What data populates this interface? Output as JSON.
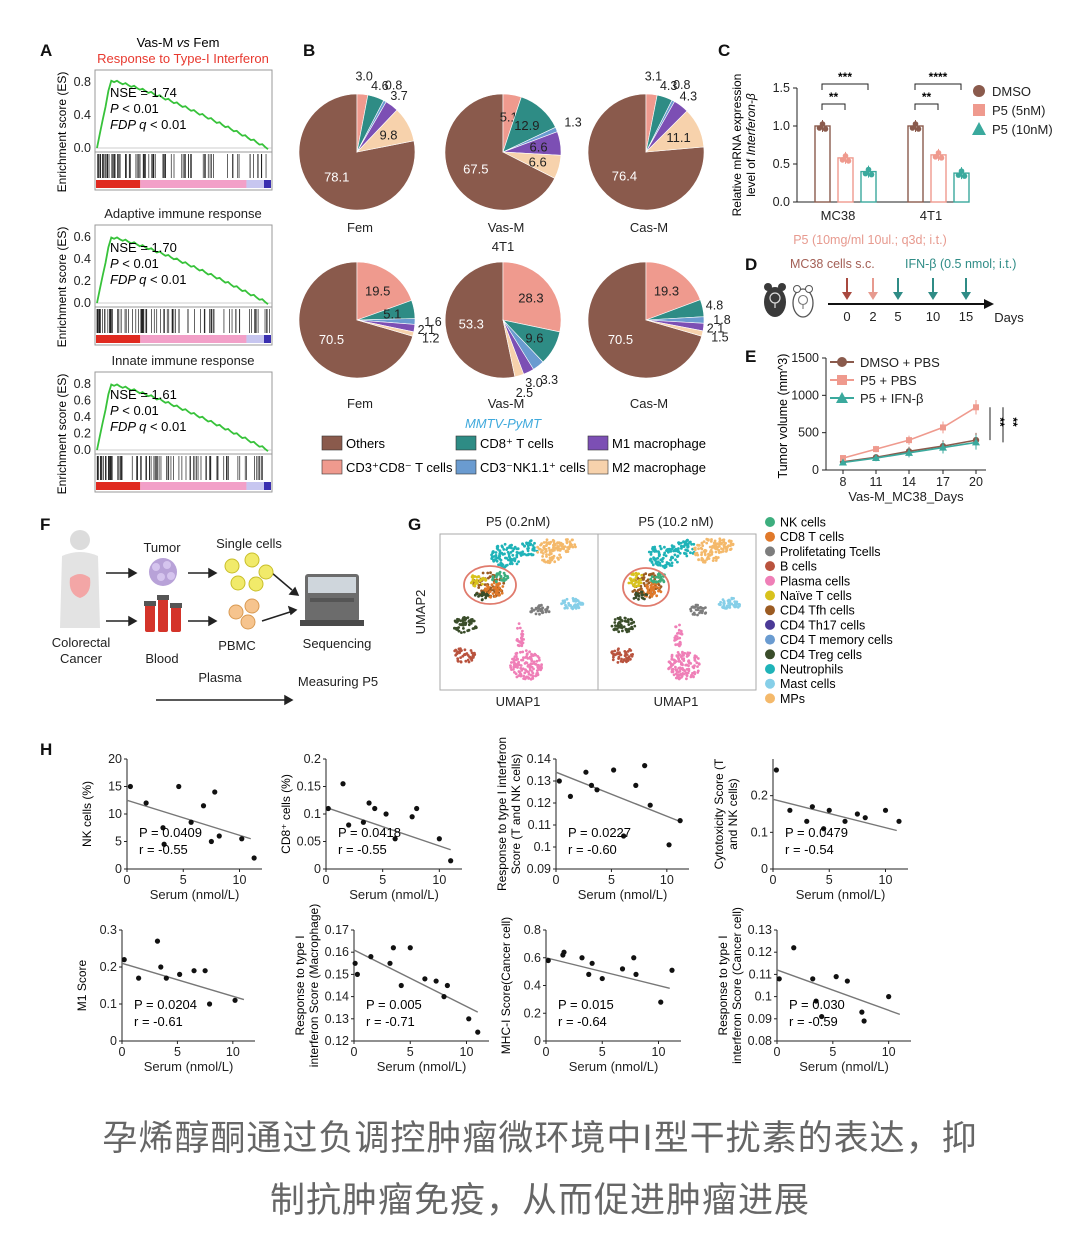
{
  "panels": {
    "A": "A",
    "B": "B",
    "C": "C",
    "D": "D",
    "E": "E",
    "F": "F",
    "G": "G",
    "H": "H"
  },
  "gsea": {
    "header": "Vas-M vs Fem",
    "ylabel": "Enrichment score (ES)",
    "colors": {
      "curve": "#37c23a",
      "red": "#e02a20",
      "blue": "#3a2fb0",
      "pink": "#f2a0c8"
    },
    "plots": [
      {
        "title": "Response to Type-I Interferon",
        "title_color": "#e8392f",
        "nse": "NSE = 1.74",
        "p": "P < 0.01",
        "fdp": "FDP q < 0.01",
        "yticks": [
          "0.8",
          "0.4",
          "0.0"
        ],
        "ymax": 0.8,
        "peak": 0.82
      },
      {
        "title": "Adaptive immune response",
        "title_color": "#222222",
        "nse": "NSE = 1.70",
        "p": "P < 0.01",
        "fdp": "FDP q < 0.01",
        "yticks": [
          "0.6",
          "0.4",
          "0.2",
          "0.0"
        ],
        "ymax": 0.6,
        "peak": 0.6
      },
      {
        "title": "Innate immune response",
        "title_color": "#222222",
        "nse": "NSE = 1.61",
        "p": "P < 0.01",
        "fdp": "FDP q < 0.01",
        "yticks": [
          "0.8",
          "0.6",
          "0.4",
          "0.2",
          "0.0"
        ],
        "ymax": 0.8,
        "peak": 0.8
      }
    ]
  },
  "pies": {
    "colors": {
      "Others": "#8a5a4c",
      "CD3CD8": "#ef9a8e",
      "CD8T": "#2e8c85",
      "NK": "#6a9bd0",
      "M1": "#7c4fb4",
      "M2": "#f7d2ac"
    },
    "order": [
      "Others",
      "CD3CD8",
      "CD8T",
      "NK",
      "M1",
      "M2"
    ],
    "row1": [
      {
        "name": "Fem",
        "values": [
          78.1,
          3.0,
          4.6,
          0.8,
          3.7,
          9.8
        ],
        "labels": [
          "78.1",
          "3.0",
          "4.6",
          "0.8",
          "3.7",
          "9.8"
        ]
      },
      {
        "name": "Vas-M",
        "values": [
          67.5,
          5.1,
          12.9,
          1.3,
          6.6,
          6.6
        ],
        "labels": [
          "67.5",
          "5.1",
          "12.9",
          "1.3",
          "6.6",
          "6.6"
        ]
      },
      {
        "name": "Cas-M",
        "values": [
          76.4,
          3.1,
          4.3,
          0.8,
          4.3,
          11.1
        ],
        "labels": [
          "76.4",
          "3.1",
          "4.3",
          "0.8",
          "4.3",
          "11.1"
        ]
      }
    ],
    "row2": [
      {
        "name": "Fem",
        "values": [
          70.5,
          19.5,
          5.1,
          1.6,
          2.1,
          1.2
        ],
        "labels": [
          "70.5",
          "19.5",
          "5.1",
          "1.6",
          "2.1",
          "1.2"
        ]
      },
      {
        "name": "Vas-M",
        "values": [
          53.3,
          28.3,
          9.6,
          3.3,
          3.0,
          2.5
        ],
        "labels": [
          "53.3",
          "28.3",
          "9.6",
          "3.3",
          "3.0",
          "2.5"
        ]
      },
      {
        "name": "Cas-M",
        "values": [
          70.5,
          19.3,
          4.8,
          1.8,
          2.1,
          1.5
        ],
        "labels": [
          "70.5",
          "19.3",
          "4.8",
          "1.8",
          "2.1",
          "1.5"
        ]
      }
    ],
    "row2_title": "4T1",
    "row_label": "MMTV-PyMT",
    "legend": [
      "Others",
      "CD3⁺CD8⁻ T cells",
      "CD8⁺ T cells",
      "CD3⁻NK1.1⁺ cells",
      "M1 macrophage",
      "M2 macrophage"
    ]
  },
  "chart_data": [
    {
      "type": "bar",
      "title": "",
      "ylabel": "Relative mRNA expression level of Interferon-β",
      "categories": [
        "MC38",
        "4T1"
      ],
      "ylim": [
        0,
        1.5
      ],
      "yticks": [
        "1.5",
        "1.0",
        "0.5",
        "0.0"
      ],
      "series": [
        {
          "name": "DMSO",
          "color": "#8a5a4c",
          "values": [
            1.0,
            1.0
          ]
        },
        {
          "name": "P5 (5nM)",
          "color": "#ef9a8e",
          "values": [
            0.58,
            0.62
          ]
        },
        {
          "name": "P5 (10nM)",
          "color": "#3aa99d",
          "values": [
            0.4,
            0.38
          ]
        }
      ],
      "sig": [
        "**",
        "***",
        "**",
        "****"
      ]
    },
    {
      "type": "line",
      "xlabel": "Vas-M_MC38_Days",
      "ylabel": "Tumor volume (mm^3)",
      "x": [
        "8",
        "11",
        "14",
        "17",
        "20"
      ],
      "ylim": [
        0,
        1500
      ],
      "yticks": [
        "1500",
        "1000",
        "500",
        "0"
      ],
      "series": [
        {
          "name": "DMSO + PBS",
          "color": "#8a5a4c",
          "values": [
            110,
            170,
            250,
            320,
            400
          ]
        },
        {
          "name": "P5 + PBS",
          "color": "#ef9a8e",
          "values": [
            160,
            280,
            400,
            570,
            840
          ]
        },
        {
          "name": "P5 + IFN-β",
          "color": "#3aa99d",
          "values": [
            100,
            160,
            230,
            300,
            370
          ]
        }
      ],
      "sig": [
        "**",
        "**"
      ]
    },
    {
      "type": "scatter",
      "ylabel": "NK cells (%)",
      "xlabel": "Serum (nmol/L)",
      "xlim": [
        0,
        12
      ],
      "ylim": [
        0,
        20
      ],
      "xticks": [
        0,
        5,
        10
      ],
      "yticks": [
        0,
        5,
        10,
        15,
        20
      ],
      "x": [
        0.3,
        1.7,
        3.2,
        3.3,
        4.6,
        5.7,
        6.8,
        7.5,
        7.8,
        8.2,
        10.2,
        11.3
      ],
      "y": [
        15.0,
        12.0,
        7.5,
        4.5,
        15.0,
        8.5,
        11.5,
        5.0,
        14.0,
        6.0,
        5.5,
        2.0
      ],
      "fit": [
        [
          0,
          12.5
        ],
        [
          11,
          5.5
        ]
      ],
      "p": "P = 0.0409",
      "r": "r = -0.55"
    },
    {
      "type": "scatter",
      "ylabel": "CD8⁺ cells (%)",
      "xlabel": "Serum (nmol/L)",
      "xlim": [
        0,
        12
      ],
      "ylim": [
        0,
        0.2
      ],
      "xticks": [
        0,
        5,
        10
      ],
      "yticks": [
        0,
        0.05,
        0.1,
        0.15,
        0.2
      ],
      "x": [
        0.2,
        1.5,
        2.0,
        3.3,
        3.8,
        4.3,
        5.3,
        6.1,
        7.6,
        8.0,
        10.0,
        11.0
      ],
      "y": [
        0.11,
        0.155,
        0.08,
        0.085,
        0.12,
        0.11,
        0.1,
        0.055,
        0.095,
        0.11,
        0.055,
        0.015
      ],
      "fit": [
        [
          0,
          0.112
        ],
        [
          11,
          0.035
        ]
      ],
      "p": "P = 0.0418",
      "r": "r = -0.55"
    },
    {
      "type": "scatter",
      "ylabel": "Response to type I interferon Score (T and NK cells)",
      "xlabel": "Serum (nmol/L)",
      "xlim": [
        0,
        12
      ],
      "ylim": [
        0.09,
        0.14
      ],
      "xticks": [
        0,
        5,
        10
      ],
      "yticks": [
        0.09,
        0.1,
        0.11,
        0.12,
        0.13,
        0.14
      ],
      "x": [
        0.3,
        1.3,
        2.7,
        3.2,
        3.7,
        5.2,
        6.1,
        7.2,
        8.0,
        8.5,
        10.2,
        11.2
      ],
      "y": [
        0.13,
        0.123,
        0.134,
        0.128,
        0.126,
        0.135,
        0.105,
        0.128,
        0.137,
        0.119,
        0.101,
        0.112
      ],
      "fit": [
        [
          0,
          0.134
        ],
        [
          11,
          0.112
        ]
      ],
      "p": "P = 0.0227",
      "r": "r = -0.60"
    },
    {
      "type": "scatter",
      "ylabel": "Cytotoxicity Score (T and NK cells)",
      "xlabel": "Serum (nmol/L)",
      "xlim": [
        0,
        12
      ],
      "ylim": [
        0,
        0.3
      ],
      "xticks": [
        0,
        5,
        10
      ],
      "yticks": [
        0,
        0.1,
        0.2
      ],
      "x": [
        0.3,
        1.5,
        3.0,
        3.5,
        4.5,
        5.0,
        6.4,
        7.5,
        8.2,
        10.0,
        11.2
      ],
      "y": [
        0.27,
        0.16,
        0.13,
        0.17,
        0.11,
        0.16,
        0.13,
        0.15,
        0.14,
        0.16,
        0.13
      ],
      "fit": [
        [
          0,
          0.19
        ],
        [
          11,
          0.105
        ]
      ],
      "p": "P = 0.0479",
      "r": "r = -0.54"
    },
    {
      "type": "scatter",
      "ylabel": "M1 Score",
      "xlabel": "Serum (nmol/L)",
      "xlim": [
        0,
        12
      ],
      "ylim": [
        0,
        0.3
      ],
      "xticks": [
        0,
        5,
        10
      ],
      "yticks": [
        0,
        0.1,
        0.2,
        0.3
      ],
      "x": [
        0.2,
        1.5,
        3.2,
        3.5,
        4.0,
        5.2,
        6.5,
        7.5,
        7.9,
        10.2
      ],
      "y": [
        0.22,
        0.17,
        0.27,
        0.2,
        0.17,
        0.18,
        0.19,
        0.19,
        0.1,
        0.11
      ],
      "fit": [
        [
          0,
          0.21
        ],
        [
          11,
          0.112
        ]
      ],
      "p": "P = 0.0204",
      "r": "r = -0.61"
    },
    {
      "type": "scatter",
      "ylabel": "Response to type I interferon Score (Macrophage)",
      "xlabel": "Serum (nmol/L)",
      "xlim": [
        0,
        12
      ],
      "ylim": [
        0.12,
        0.17
      ],
      "xticks": [
        0,
        5,
        10
      ],
      "yticks": [
        0.12,
        0.13,
        0.14,
        0.15,
        0.16,
        0.17
      ],
      "x": [
        0.1,
        0.3,
        1.5,
        3.2,
        3.5,
        4.2,
        5.0,
        6.3,
        7.3,
        8.0,
        8.3,
        10.2,
        11.0
      ],
      "y": [
        0.155,
        0.15,
        0.158,
        0.155,
        0.162,
        0.145,
        0.162,
        0.148,
        0.147,
        0.14,
        0.145,
        0.13,
        0.124
      ],
      "fit": [
        [
          0,
          0.161
        ],
        [
          11,
          0.133
        ]
      ],
      "p": "P = 0.005",
      "r": "r = -0.71"
    },
    {
      "type": "scatter",
      "ylabel": "MHC-I Score(Cancer cell)",
      "xlabel": "Serum (nmol/L)",
      "xlim": [
        0,
        12
      ],
      "ylim": [
        0,
        0.8
      ],
      "xticks": [
        0,
        5,
        10
      ],
      "yticks": [
        0,
        0.2,
        0.4,
        0.6,
        0.8
      ],
      "x": [
        0.2,
        1.5,
        1.6,
        3.2,
        3.8,
        4.1,
        5.0,
        6.8,
        7.8,
        8.0,
        10.2,
        11.2
      ],
      "y": [
        0.58,
        0.62,
        0.64,
        0.6,
        0.48,
        0.56,
        0.45,
        0.52,
        0.6,
        0.48,
        0.28,
        0.51
      ],
      "fit": [
        [
          0,
          0.6
        ],
        [
          11,
          0.38
        ]
      ],
      "p": "P = 0.015",
      "r": "r = -0.64"
    },
    {
      "type": "scatter",
      "ylabel": "Response to type I interferon Score (Cancer cell)",
      "xlabel": "Serum (nmol/L)",
      "xlim": [
        0,
        12
      ],
      "ylim": [
        0.08,
        0.13
      ],
      "xticks": [
        0,
        5,
        10
      ],
      "yticks": [
        0.08,
        0.09,
        0.1,
        0.11,
        0.12,
        0.13
      ],
      "x": [
        0.2,
        1.5,
        3.2,
        3.5,
        4.0,
        5.3,
        6.3,
        7.6,
        7.8,
        10.0
      ],
      "y": [
        0.108,
        0.122,
        0.108,
        0.098,
        0.091,
        0.109,
        0.107,
        0.093,
        0.089,
        0.1
      ],
      "fit": [
        [
          0,
          0.112
        ],
        [
          11,
          0.092
        ]
      ],
      "p": "P = 0.030",
      "r": "r = -0.59"
    }
  ],
  "panelD": {
    "top1": "P5 (10mg/ml 10ul.; q3d; i.t.)",
    "line2a": "MC38 cells s.c.",
    "line2b": "IFN-β (0.5 nmol; i.t.)",
    "days": [
      "0",
      "2",
      "5",
      "10",
      "15"
    ],
    "days_label": "Days"
  },
  "panelF": {
    "labels": {
      "tumor": "Tumor",
      "single": "Single cells",
      "patient": "Colorectal\nCancer",
      "blood": "Blood",
      "pbmc": "PBMC",
      "seq": "Sequencing",
      "plasma": "Plasma",
      "measure": "Measuring P5"
    }
  },
  "panelG": {
    "titles": [
      "P5 (0.2nM)",
      "P5 (10.2 nM)"
    ],
    "xlabel": "UMAP1",
    "ylabel": "UMAP2",
    "legend": [
      {
        "name": "NK cells",
        "color": "#3dae7e"
      },
      {
        "name": "CD8 T cells",
        "color": "#e0792a"
      },
      {
        "name": "Prolifetating Tcells",
        "color": "#7d7d7d"
      },
      {
        "name": "B cells",
        "color": "#b9533e"
      },
      {
        "name": "Plasma cells",
        "color": "#ef7fb7"
      },
      {
        "name": "Naïve T cells",
        "color": "#d8c21c"
      },
      {
        "name": "CD4 Tfh cells",
        "color": "#9b5b22"
      },
      {
        "name": "CD4 Th17 cells",
        "color": "#4b3a97"
      },
      {
        "name": "CD4 T memory cells",
        "color": "#6a9bd0"
      },
      {
        "name": "CD4 Treg cells",
        "color": "#3a4d2a"
      },
      {
        "name": "Neutrophils",
        "color": "#1fb3b8"
      },
      {
        "name": "Mast cells",
        "color": "#86cfe8"
      },
      {
        "name": "MPs",
        "color": "#f4b96b"
      }
    ]
  },
  "caption": {
    "line1": "孕烯醇酮通过负调控肿瘤微环境中I型干扰素的表达，抑",
    "line2": "制抗肿瘤免疫，从而促进肿瘤进展"
  }
}
